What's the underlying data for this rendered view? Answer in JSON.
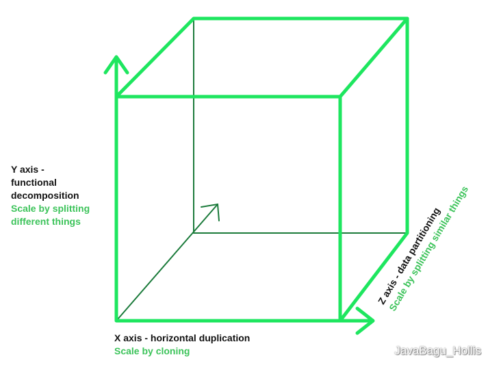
{
  "colors": {
    "edge": "#1ee65f",
    "inner_edge": "#1a7a3a",
    "label_dark": "#111111",
    "label_green": "#3cc35a"
  },
  "y_axis": {
    "lines": [
      "Y axis -",
      "functional",
      "decomposition"
    ],
    "desc_lines": [
      "Scale by splitting",
      "different things"
    ]
  },
  "x_axis": {
    "title": "X axis - horizontal duplication",
    "desc": "Scale by cloning"
  },
  "z_axis": {
    "title": "Z axis - data partitioning",
    "desc": "Scale by splitting similar things"
  },
  "watermark": "JavaBagu_Hollis"
}
